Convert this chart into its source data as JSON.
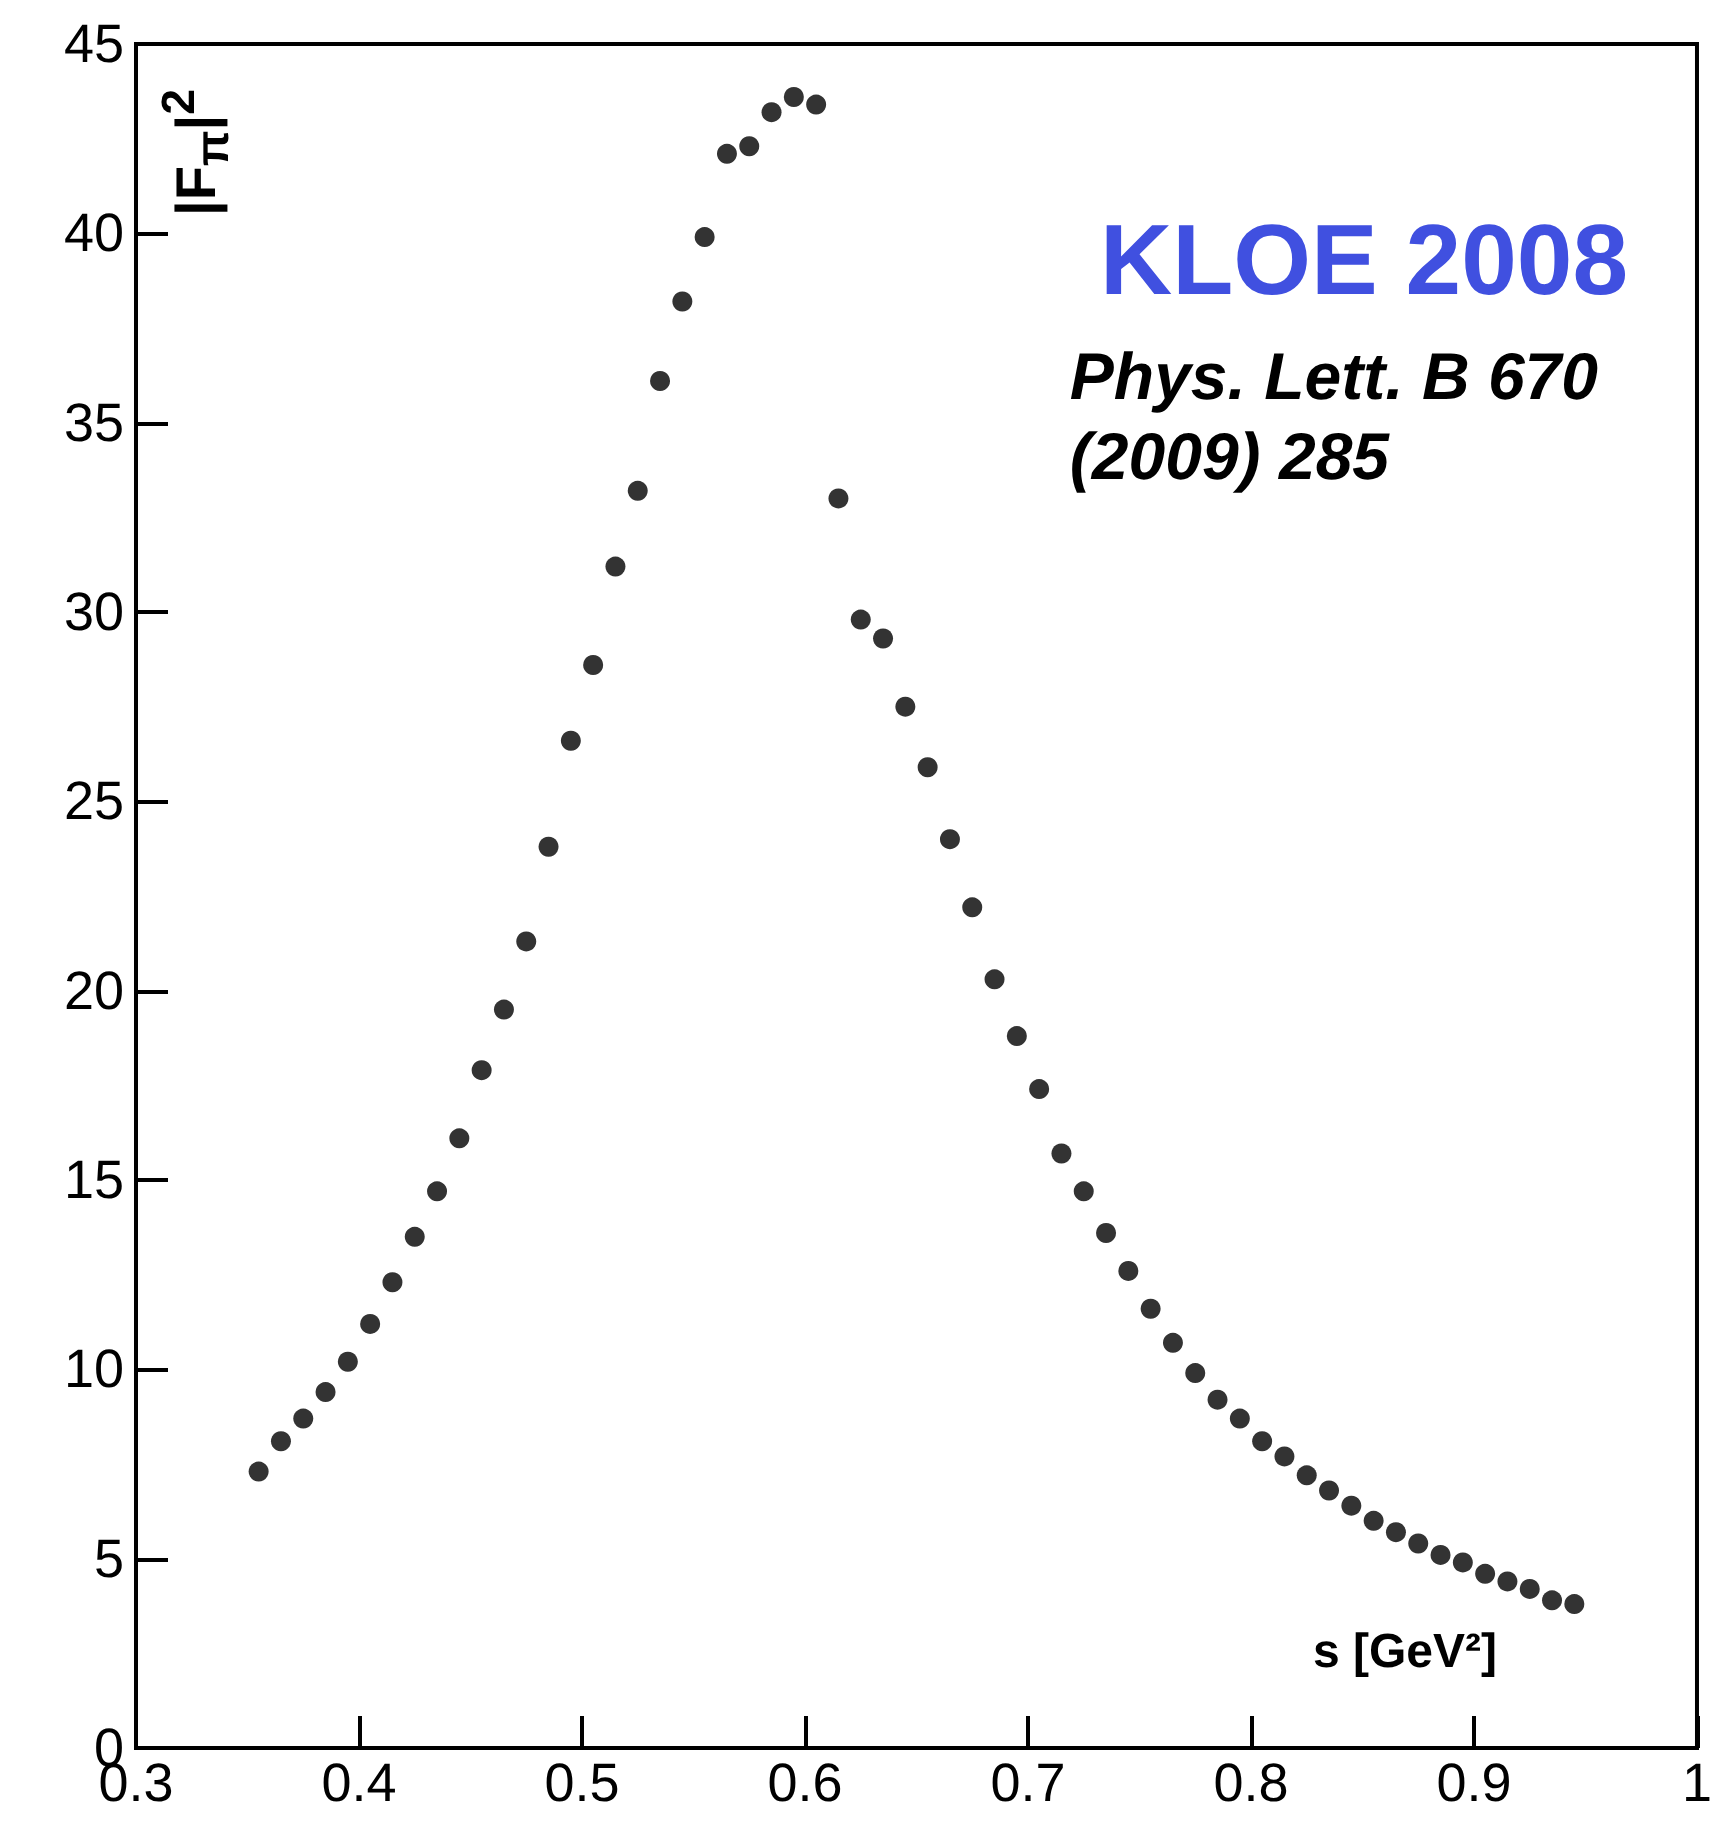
{
  "chart_data": {
    "type": "scatter",
    "title": "KLOE 2008",
    "annotations": [
      "Phys. Lett. B 670\n(2009) 285"
    ],
    "xlabel": "s [GeV²]",
    "ylabel": "|F$_{π}$|$^{2}$",
    "x": [
      0.355,
      0.365,
      0.375,
      0.385,
      0.395,
      0.405,
      0.415,
      0.425,
      0.435,
      0.445,
      0.455,
      0.465,
      0.475,
      0.485,
      0.495,
      0.505,
      0.515,
      0.525,
      0.535,
      0.545,
      0.555,
      0.565,
      0.575,
      0.585,
      0.595,
      0.605,
      0.615,
      0.625,
      0.635,
      0.645,
      0.655,
      0.665,
      0.675,
      0.685,
      0.695,
      0.705,
      0.715,
      0.725,
      0.735,
      0.745,
      0.755,
      0.765,
      0.775,
      0.785,
      0.795,
      0.805,
      0.815,
      0.825,
      0.835,
      0.845,
      0.855,
      0.865,
      0.875,
      0.885,
      0.895,
      0.905,
      0.915,
      0.925,
      0.935,
      0.945
    ],
    "series": [
      {
        "color": "#000000",
        "values": [
          7.3,
          8.1,
          8.7,
          9.4,
          10.2,
          11.2,
          12.3,
          13.5,
          14.7,
          16.1,
          17.9,
          19.5,
          21.3,
          23.8,
          26.6,
          28.6,
          31.2,
          33.2,
          36.1,
          38.2,
          39.9,
          42.1,
          42.3,
          43.2,
          43.6,
          43.4,
          33.0,
          29.8,
          29.3,
          27.5,
          25.9,
          24.0,
          22.2,
          20.3,
          18.8,
          17.4,
          15.7,
          14.7,
          13.6,
          12.6,
          11.6,
          10.7,
          9.9,
          9.2,
          8.7,
          8.1,
          7.7,
          7.2,
          6.8,
          6.4,
          6.0,
          5.7,
          5.4,
          5.1,
          4.9,
          4.6,
          4.4,
          4.2,
          3.9,
          3.8
        ]
      }
    ],
    "xlim": [
      0.3,
      1
    ],
    "xticks": [
      0.3,
      0.4,
      0.5,
      0.6,
      0.7,
      0.8,
      0.9,
      1
    ],
    "ylim": [
      0,
      45
    ],
    "yticks": [
      0,
      5,
      10,
      15,
      20,
      25,
      30,
      35,
      40,
      45
    ],
    "grid": false,
    "marker": "circle"
  }
}
